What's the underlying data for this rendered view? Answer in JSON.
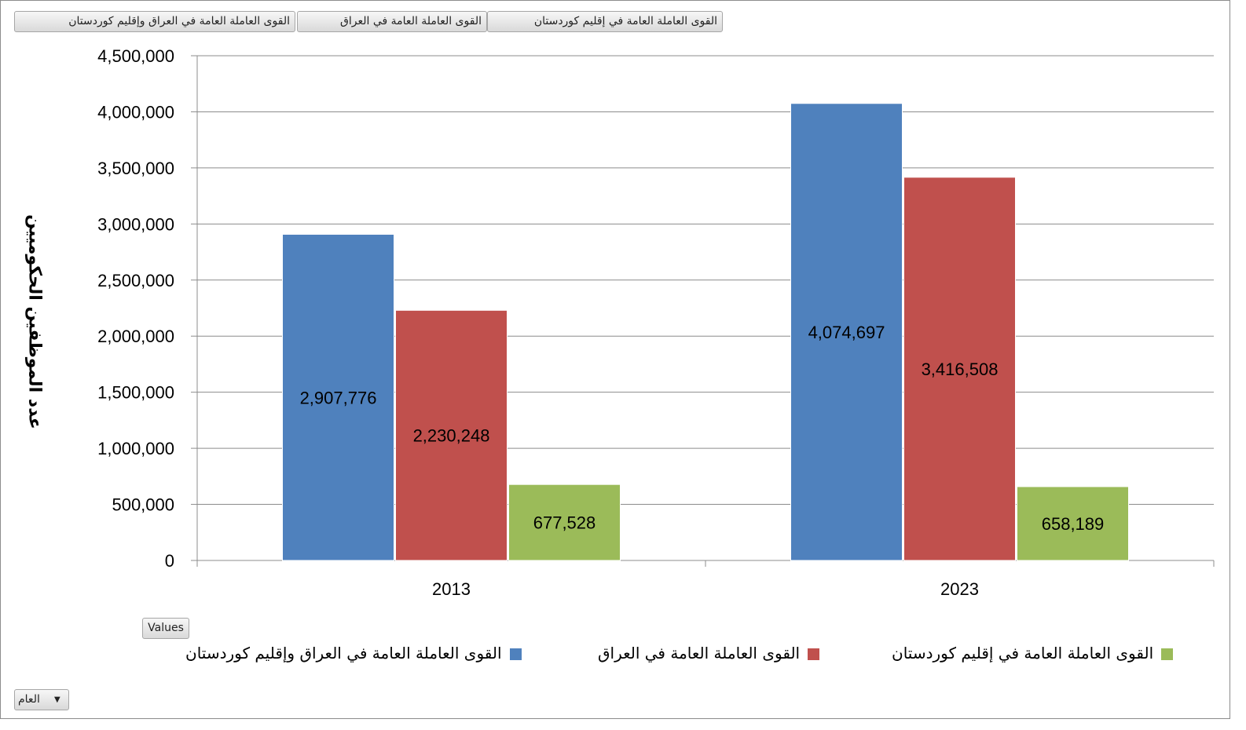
{
  "pivot_fields": [
    {
      "label": "القوى العاملة العامة في العراق وإقليم كوردستان"
    },
    {
      "label": "القوى العاملة العامة في العراق"
    },
    {
      "label": "القوى العاملة العامة في إقليم كوردستان"
    }
  ],
  "values_button": "Values",
  "filter": {
    "label": "العام",
    "arrow": "▼"
  },
  "colors": {
    "blue": "#4f81bd",
    "red": "#c0504d",
    "green": "#9bbb59"
  },
  "chart_data": {
    "type": "bar",
    "categories": [
      "2013",
      "2023"
    ],
    "series": [
      {
        "name": "القوى العاملة العامة في العراق وإقليم كوردستان",
        "color": "#4f81bd",
        "values": [
          2907776,
          4074697
        ],
        "labels": [
          "2,907,776",
          "4,074,697"
        ]
      },
      {
        "name": "القوى العاملة العامة في العراق",
        "color": "#c0504d",
        "values": [
          2230248,
          3416508
        ],
        "labels": [
          "2,230,248",
          "3,416,508"
        ]
      },
      {
        "name": "القوى العاملة العامة في إقليم كوردستان",
        "color": "#9bbb59",
        "values": [
          677528,
          658189
        ],
        "labels": [
          "677,528",
          "658,189"
        ]
      }
    ],
    "ylabel": "عدد الموظفين الحكوميين",
    "ylim": [
      0,
      4500000
    ],
    "yticks": [
      "0",
      "500,000",
      "1,000,000",
      "1,500,000",
      "2,000,000",
      "2,500,000",
      "3,000,000",
      "3,500,000",
      "4,000,000",
      "4,500,000"
    ],
    "grid": true,
    "legend_position": "bottom"
  }
}
